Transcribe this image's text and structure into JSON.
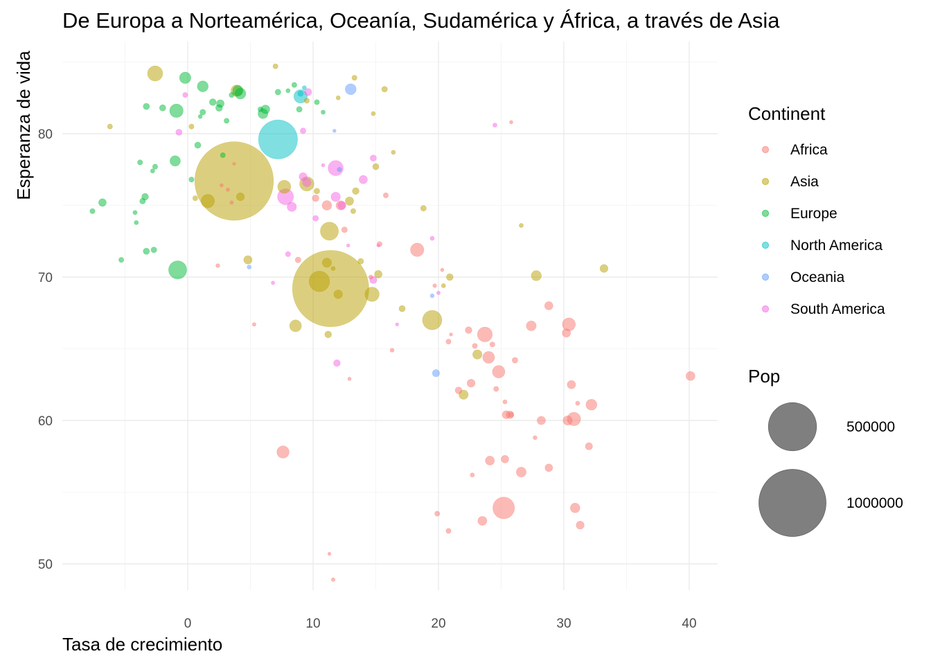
{
  "chart_data": {
    "type": "scatter",
    "title": "De Europa a Norteamérica, Oceanía, Sudamérica y África, a través de Asia",
    "xlabel": "Tasa de crecimiento",
    "ylabel": "Esperanza de vida",
    "xlim": [
      -10,
      42.5
    ],
    "ylim": [
      47,
      86
    ],
    "x_ticks": [
      0,
      10,
      20,
      30,
      40
    ],
    "y_ticks": [
      50,
      60,
      70,
      80
    ],
    "grid": true,
    "legend_position": "right",
    "point_alpha": 0.5,
    "color_legend": {
      "title": "Continent",
      "entries": [
        {
          "name": "Africa",
          "color": "#F8766D"
        },
        {
          "name": "Asia",
          "color": "#B79F00"
        },
        {
          "name": "Europe",
          "color": "#00BA38"
        },
        {
          "name": "North America",
          "color": "#00BFC4"
        },
        {
          "name": "Oceania",
          "color": "#619CFF"
        },
        {
          "name": "South America",
          "color": "#F564E3"
        }
      ]
    },
    "size_legend": {
      "title": "Pop",
      "entries": [
        {
          "label": "500000",
          "value": 500000
        },
        {
          "label": "1000000",
          "value": 1000000
        }
      ]
    },
    "series": [
      {
        "name": "Africa",
        "points": [
          [
            18.3,
            71.9,
            30000
          ],
          [
            23.7,
            66.0,
            38000
          ],
          [
            24.0,
            64.4,
            22000
          ],
          [
            24.8,
            63.4,
            25000
          ],
          [
            22.4,
            66.3,
            5000
          ],
          [
            27.4,
            66.6,
            14000
          ],
          [
            28.8,
            68.0,
            9000
          ],
          [
            30.4,
            66.7,
            28000
          ],
          [
            30.2,
            66.1,
            9000
          ],
          [
            22.6,
            62.6,
            8000
          ],
          [
            21.6,
            62.1,
            5000
          ],
          [
            25.2,
            53.9,
            90000
          ],
          [
            23.5,
            53.0,
            11000
          ],
          [
            25.3,
            57.3,
            7000
          ],
          [
            24.1,
            57.2,
            11000
          ],
          [
            26.6,
            56.4,
            14000
          ],
          [
            28.8,
            56.7,
            7000
          ],
          [
            25.4,
            60.4,
            8000
          ],
          [
            25.7,
            60.4,
            7000
          ],
          [
            28.2,
            60.0,
            9000
          ],
          [
            30.3,
            60.0,
            12000
          ],
          [
            30.8,
            60.1,
            30000
          ],
          [
            32.2,
            61.1,
            18000
          ],
          [
            30.6,
            62.5,
            9000
          ],
          [
            30.9,
            53.9,
            13000
          ],
          [
            31.3,
            52.7,
            8000
          ],
          [
            32.0,
            58.2,
            6000
          ],
          [
            40.1,
            63.1,
            11000
          ],
          [
            7.6,
            57.8,
            24000
          ],
          [
            11.1,
            75.0,
            13000
          ],
          [
            10.2,
            75.5,
            5000
          ],
          [
            12.2,
            75.0,
            12000
          ],
          [
            8.8,
            71.2,
            3000
          ],
          [
            15.3,
            72.3,
            2000
          ],
          [
            20.8,
            65.5,
            2000
          ],
          [
            22.9,
            65.2,
            2000
          ],
          [
            26.1,
            64.2,
            3000
          ],
          [
            24.3,
            65.3,
            2000
          ],
          [
            24.6,
            62.2,
            2000
          ],
          [
            25.3,
            61.3,
            1000
          ],
          [
            25.8,
            60.4,
            2000
          ],
          [
            27.7,
            58.8,
            800
          ],
          [
            31.1,
            61.2,
            1000
          ],
          [
            22.7,
            56.2,
            1000
          ],
          [
            19.9,
            53.5,
            2000
          ],
          [
            20.8,
            52.3,
            2000
          ],
          [
            16.3,
            64.9,
            800
          ],
          [
            11.3,
            50.7,
            300
          ],
          [
            11.6,
            48.9,
            600
          ],
          [
            25.8,
            80.8,
            400
          ],
          [
            15.8,
            75.7,
            2000
          ],
          [
            12.5,
            73.3,
            3000
          ],
          [
            2.4,
            70.8,
            800
          ],
          [
            3.5,
            75.2,
            500
          ],
          [
            5.3,
            66.7,
            500
          ],
          [
            12.9,
            62.9,
            400
          ],
          [
            19.7,
            69.4,
            700
          ],
          [
            20.3,
            70.5,
            400
          ],
          [
            21.0,
            66.0,
            300
          ],
          [
            14.6,
            70.0,
            1000
          ],
          [
            3.2,
            76.1,
            500
          ],
          [
            2.7,
            76.4,
            400
          ],
          [
            3.7,
            77.9,
            200
          ]
        ]
      },
      {
        "name": "Asia",
        "points": [
          [
            3.7,
            76.7,
            1380000
          ],
          [
            11.4,
            69.2,
            1300000
          ],
          [
            10.5,
            69.7,
            80000
          ],
          [
            11.3,
            73.2,
            60000
          ],
          [
            9.5,
            76.5,
            35000
          ],
          [
            1.6,
            75.3,
            30000
          ],
          [
            19.5,
            67.0,
            70000
          ],
          [
            14.7,
            68.8,
            35000
          ],
          [
            8.6,
            66.6,
            22000
          ],
          [
            7.7,
            76.3,
            28000
          ],
          [
            3.9,
            83.0,
            20000
          ],
          [
            -2.6,
            84.2,
            40000
          ],
          [
            11.1,
            71.0,
            12000
          ],
          [
            12.0,
            68.8,
            10000
          ],
          [
            27.8,
            70.1,
            15000
          ],
          [
            22.0,
            61.8,
            12000
          ],
          [
            23.1,
            64.6,
            12000
          ],
          [
            33.2,
            70.6,
            8000
          ],
          [
            4.8,
            71.2,
            9000
          ],
          [
            4.2,
            75.6,
            8000
          ],
          [
            11.2,
            66.0,
            5000
          ],
          [
            12.9,
            75.3,
            9000
          ],
          [
            17.1,
            67.8,
            4000
          ],
          [
            15.2,
            70.2,
            7000
          ],
          [
            20.9,
            70.0,
            5000
          ],
          [
            15.0,
            77.7,
            4000
          ],
          [
            18.8,
            74.8,
            3000
          ],
          [
            13.4,
            76.0,
            5000
          ],
          [
            13.2,
            74.6,
            2000
          ],
          [
            10.3,
            76.0,
            3000
          ],
          [
            -6.2,
            80.5,
            2000
          ],
          [
            0.3,
            80.5,
            2000
          ],
          [
            0.6,
            75.5,
            2000
          ],
          [
            7.0,
            84.7,
            2000
          ],
          [
            13.3,
            83.9,
            2000
          ],
          [
            15.7,
            83.1,
            3000
          ],
          [
            12.0,
            82.5,
            1000
          ],
          [
            9.5,
            82.3,
            2000
          ],
          [
            14.8,
            81.4,
            1000
          ],
          [
            16.4,
            78.7,
            1000
          ],
          [
            20.4,
            69.4,
            1000
          ],
          [
            26.6,
            73.6,
            1000
          ],
          [
            11.6,
            70.6,
            1000
          ],
          [
            13.8,
            71.1,
            3000
          ]
        ]
      },
      {
        "name": "Europe",
        "points": [
          [
            -0.9,
            81.6,
            30000
          ],
          [
            -1.0,
            78.1,
            16000
          ],
          [
            -0.8,
            70.5,
            60000
          ],
          [
            -0.2,
            83.9,
            20000
          ],
          [
            1.2,
            83.3,
            18000
          ],
          [
            4.0,
            83.0,
            16000
          ],
          [
            4.2,
            82.8,
            18000
          ],
          [
            6.0,
            81.4,
            14000
          ],
          [
            6.2,
            81.7,
            10000
          ],
          [
            2.6,
            82.1,
            7000
          ],
          [
            2.0,
            82.2,
            5000
          ],
          [
            2.5,
            81.8,
            5000
          ],
          [
            1.2,
            81.5,
            3000
          ],
          [
            -3.3,
            81.9,
            4000
          ],
          [
            -2.0,
            81.8,
            4000
          ],
          [
            0.8,
            79.2,
            4000
          ],
          [
            -3.4,
            75.6,
            5000
          ],
          [
            -3.3,
            71.8,
            4000
          ],
          [
            -2.7,
            71.9,
            3000
          ],
          [
            -5.3,
            71.2,
            2000
          ],
          [
            -6.8,
            75.2,
            7000
          ],
          [
            -7.6,
            74.6,
            2000
          ],
          [
            -3.6,
            75.3,
            3000
          ],
          [
            -2.6,
            77.7,
            2000
          ],
          [
            -2.8,
            77.4,
            1000
          ],
          [
            -3.8,
            78.0,
            2000
          ],
          [
            0.3,
            76.8,
            2000
          ],
          [
            7.2,
            82.9,
            3000
          ],
          [
            8.5,
            83.4,
            2000
          ],
          [
            8.9,
            81.7,
            3000
          ],
          [
            10.3,
            82.2,
            2000
          ],
          [
            3.5,
            82.7,
            2000
          ],
          [
            3.1,
            80.9,
            2000
          ],
          [
            -4.2,
            74.5,
            1000
          ],
          [
            -4.1,
            73.8,
            1000
          ],
          [
            2.8,
            78.5,
            2000
          ],
          [
            5.8,
            81.7,
            2000
          ],
          [
            1.0,
            81.2,
            800
          ],
          [
            8.0,
            83.0,
            1000
          ],
          [
            10.8,
            81.5,
            1000
          ]
        ]
      },
      {
        "name": "North America",
        "points": [
          [
            7.2,
            79.6,
            320000
          ],
          [
            9.0,
            82.6,
            30000
          ],
          [
            9.0,
            82.8,
            3000
          ],
          [
            9.3,
            83.2,
            1000
          ]
        ]
      },
      {
        "name": "Oceania",
        "points": [
          [
            13.0,
            83.1,
            18000
          ],
          [
            19.8,
            63.3,
            6000
          ],
          [
            12.1,
            77.5,
            1500
          ],
          [
            4.9,
            70.7,
            900
          ],
          [
            19.5,
            68.7,
            800
          ],
          [
            11.7,
            80.2,
            300
          ]
        ]
      },
      {
        "name": "South America",
        "points": [
          [
            11.8,
            77.6,
            40000
          ],
          [
            7.8,
            75.6,
            45000
          ],
          [
            8.3,
            74.9,
            12000
          ],
          [
            11.8,
            75.6,
            12000
          ],
          [
            9.2,
            77.0,
            8000
          ],
          [
            9.5,
            76.6,
            10000
          ],
          [
            12.3,
            75.0,
            8000
          ],
          [
            14.0,
            76.8,
            9000
          ],
          [
            14.8,
            69.8,
            6000
          ],
          [
            14.8,
            78.3,
            4000
          ],
          [
            9.6,
            82.9,
            6000
          ],
          [
            9.2,
            80.2,
            3000
          ],
          [
            -0.7,
            80.1,
            4000
          ],
          [
            -0.2,
            82.7,
            2000
          ],
          [
            8.0,
            71.6,
            2000
          ],
          [
            10.2,
            74.1,
            3000
          ],
          [
            11.9,
            64.0,
            5000
          ],
          [
            19.5,
            72.7,
            1000
          ],
          [
            24.5,
            80.6,
            1000
          ],
          [
            6.8,
            69.6,
            500
          ],
          [
            16.7,
            66.7,
            300
          ],
          [
            20.0,
            68.9,
            500
          ],
          [
            10.8,
            77.8,
            400
          ],
          [
            12.8,
            72.2,
            300
          ],
          [
            15.2,
            72.2,
            200
          ]
        ]
      }
    ]
  }
}
